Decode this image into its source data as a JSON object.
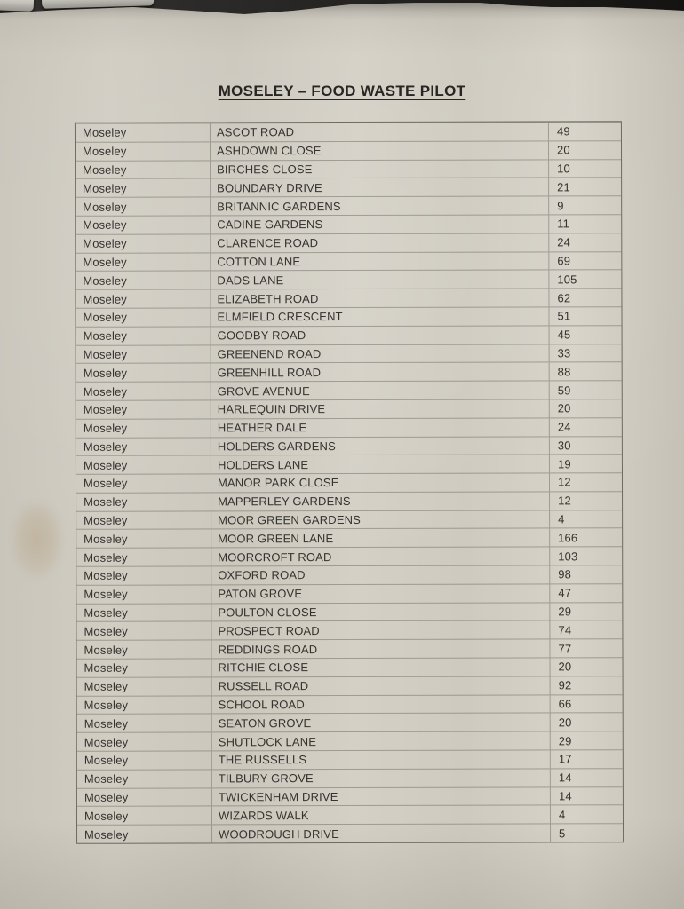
{
  "page": {
    "title": "MOSELEY – FOOD WASTE PILOT"
  },
  "table": {
    "rows": [
      {
        "area": "Moseley",
        "street": "ASCOT ROAD",
        "count": "49"
      },
      {
        "area": "Moseley",
        "street": "ASHDOWN CLOSE",
        "count": "20"
      },
      {
        "area": "Moseley",
        "street": "BIRCHES CLOSE",
        "count": "10"
      },
      {
        "area": "Moseley",
        "street": "BOUNDARY DRIVE",
        "count": "21"
      },
      {
        "area": "Moseley",
        "street": "BRITANNIC GARDENS",
        "count": "9"
      },
      {
        "area": "Moseley",
        "street": "CADINE GARDENS",
        "count": "11"
      },
      {
        "area": "Moseley",
        "street": "CLARENCE ROAD",
        "count": "24"
      },
      {
        "area": "Moseley",
        "street": "COTTON LANE",
        "count": "69"
      },
      {
        "area": "Moseley",
        "street": "DADS LANE",
        "count": "105"
      },
      {
        "area": "Moseley",
        "street": "ELIZABETH ROAD",
        "count": "62"
      },
      {
        "area": "Moseley",
        "street": "ELMFIELD CRESCENT",
        "count": "51"
      },
      {
        "area": "Moseley",
        "street": "GOODBY ROAD",
        "count": "45"
      },
      {
        "area": "Moseley",
        "street": "GREENEND ROAD",
        "count": "33"
      },
      {
        "area": "Moseley",
        "street": "GREENHILL ROAD",
        "count": "88"
      },
      {
        "area": "Moseley",
        "street": "GROVE AVENUE",
        "count": "59"
      },
      {
        "area": "Moseley",
        "street": "HARLEQUIN DRIVE",
        "count": "20"
      },
      {
        "area": "Moseley",
        "street": "HEATHER DALE",
        "count": "24"
      },
      {
        "area": "Moseley",
        "street": "HOLDERS GARDENS",
        "count": "30"
      },
      {
        "area": "Moseley",
        "street": "HOLDERS LANE",
        "count": "19"
      },
      {
        "area": "Moseley",
        "street": "MANOR PARK CLOSE",
        "count": "12"
      },
      {
        "area": "Moseley",
        "street": "MAPPERLEY GARDENS",
        "count": "12"
      },
      {
        "area": "Moseley",
        "street": "MOOR GREEN GARDENS",
        "count": "4"
      },
      {
        "area": "Moseley",
        "street": "MOOR GREEN LANE",
        "count": "166"
      },
      {
        "area": "Moseley",
        "street": "MOORCROFT ROAD",
        "count": "103"
      },
      {
        "area": "Moseley",
        "street": "OXFORD ROAD",
        "count": "98"
      },
      {
        "area": "Moseley",
        "street": "PATON GROVE",
        "count": "47"
      },
      {
        "area": "Moseley",
        "street": "POULTON CLOSE",
        "count": "29"
      },
      {
        "area": "Moseley",
        "street": "PROSPECT ROAD",
        "count": "74"
      },
      {
        "area": "Moseley",
        "street": "REDDINGS ROAD",
        "count": "77"
      },
      {
        "area": "Moseley",
        "street": "RITCHIE CLOSE",
        "count": "20"
      },
      {
        "area": "Moseley",
        "street": "RUSSELL ROAD",
        "count": "92"
      },
      {
        "area": "Moseley",
        "street": "SCHOOL ROAD",
        "count": "66"
      },
      {
        "area": "Moseley",
        "street": "SEATON GROVE",
        "count": "20"
      },
      {
        "area": "Moseley",
        "street": "SHUTLOCK LANE",
        "count": "29"
      },
      {
        "area": "Moseley",
        "street": "THE RUSSELLS",
        "count": "17"
      },
      {
        "area": "Moseley",
        "street": "TILBURY GROVE",
        "count": "14"
      },
      {
        "area": "Moseley",
        "street": "TWICKENHAM DRIVE",
        "count": "14"
      },
      {
        "area": "Moseley",
        "street": "WIZARDS WALK",
        "count": "4"
      },
      {
        "area": "Moseley",
        "street": "WOODROUGH DRIVE",
        "count": "5"
      }
    ]
  }
}
